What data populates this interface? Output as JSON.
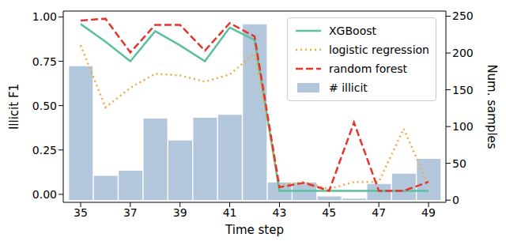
{
  "chart_data": {
    "type": "bar_line_combo",
    "x_label": "Time step",
    "y_label": "Illicit F1",
    "y2_label": "Num. samples",
    "x": [
      35,
      36,
      37,
      38,
      39,
      40,
      41,
      42,
      43,
      44,
      45,
      46,
      47,
      48,
      49
    ],
    "xlim": [
      34.3,
      49.7
    ],
    "xticks": [
      35,
      37,
      39,
      41,
      43,
      45,
      47,
      49
    ],
    "ylim": [
      -0.045,
      1.033
    ],
    "yticks": [
      {
        "value": 0,
        "label": "0.00"
      },
      {
        "value": 0.25,
        "label": "0.25"
      },
      {
        "value": 0.5,
        "label": "0.50"
      },
      {
        "value": 0.75,
        "label": "0.75"
      },
      {
        "value": 1,
        "label": "1.00"
      }
    ],
    "y2lim": [
      -3,
      257
    ],
    "y2ticks": [
      0,
      50,
      100,
      150,
      200,
      250
    ],
    "grid": false,
    "legend": "upper right",
    "series": [
      {
        "name": "XGBoost",
        "type": "line",
        "color": "#5cbf9f",
        "line_style": "solid",
        "values": [
          0.96,
          0.86,
          0.75,
          0.92,
          0.84,
          0.75,
          0.94,
          0.87,
          0.02,
          0.02,
          0.02,
          0.02,
          0.02,
          0.02,
          0.02
        ]
      },
      {
        "name": "logistic regression",
        "type": "line",
        "color": "#f5a742",
        "line_style": "dotted",
        "values": [
          0.84,
          0.49,
          0.6,
          0.68,
          0.67,
          0.635,
          0.675,
          0.795,
          0.05,
          0.07,
          0.03,
          0.07,
          0.07,
          0.37,
          0.05
        ]
      },
      {
        "name": "random forest",
        "type": "line",
        "color": "#e4352b",
        "line_style": "dashed",
        "values": [
          0.98,
          0.99,
          0.8,
          0.955,
          0.955,
          0.81,
          0.965,
          0.89,
          0.04,
          0.065,
          0.02,
          0.405,
          0.02,
          0.02,
          0.07
        ]
      },
      {
        "name": "# illicit",
        "type": "bar",
        "axis": "y2",
        "color": "#b3c7dc",
        "values": [
          182,
          33,
          40,
          111,
          81,
          112,
          116,
          239,
          24,
          24,
          5,
          2,
          22,
          36,
          56
        ]
      }
    ]
  }
}
